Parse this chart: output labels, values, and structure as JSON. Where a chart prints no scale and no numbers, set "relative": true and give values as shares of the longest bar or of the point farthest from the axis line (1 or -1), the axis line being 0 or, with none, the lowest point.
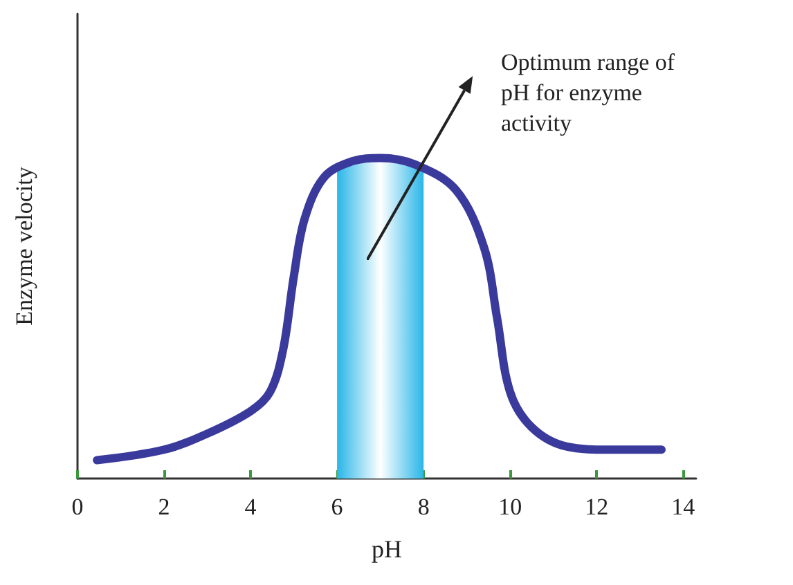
{
  "chart_data": {
    "type": "line",
    "xlabel": "pH",
    "ylabel": "Enzyme velocity",
    "relative": true,
    "annotations": [
      "Optimum range of pH for enzyme activity"
    ],
    "x": [
      0.45,
      2.0,
      3.0,
      4.0,
      4.45,
      4.75,
      5.0,
      5.25,
      5.7,
      6.35,
      7.0,
      7.8,
      8.75,
      9.4,
      9.7,
      10.0,
      10.5,
      11.3,
      12.3,
      13.5
    ],
    "series": [
      {
        "color": "#3a3a9c",
        "values": [
          0.057,
          0.09,
          0.14,
          0.21,
          0.27,
          0.4,
          0.63,
          0.81,
          0.94,
          0.99,
          1.0,
          0.98,
          0.9,
          0.72,
          0.5,
          0.27,
          0.16,
          0.1,
          0.09,
          0.09
        ]
      }
    ],
    "bands": [
      {
        "axis": "x",
        "from": 6,
        "to": 8,
        "color": "#29b6e8"
      }
    ],
    "xlim": [
      0,
      14.3
    ],
    "xticks": [
      0,
      2,
      4,
      6,
      8,
      10,
      12,
      14
    ],
    "grid": false,
    "marker": "none",
    "line_style": "solid"
  }
}
